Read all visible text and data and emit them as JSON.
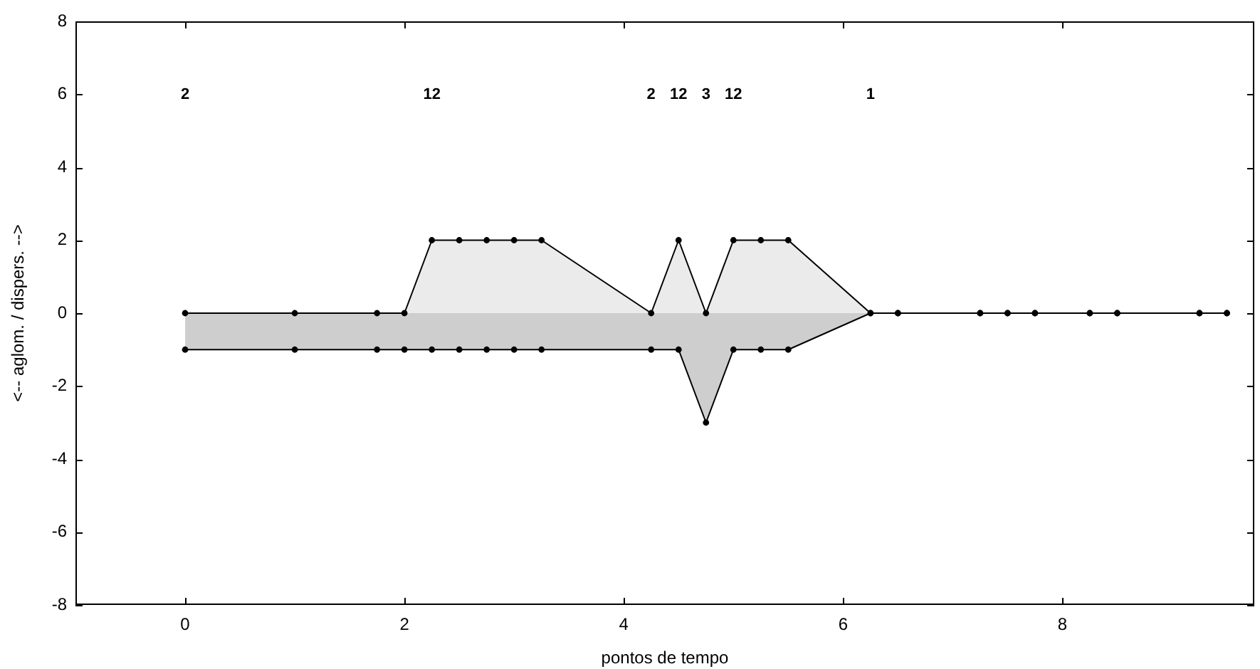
{
  "chart_data": {
    "type": "area",
    "xlabel": "pontos de tempo",
    "ylabel": "<-- aglom. / dispers. -->",
    "x": [
      0,
      1,
      1.75,
      2,
      2.25,
      2.5,
      2.75,
      3,
      3.25,
      4.25,
      4.5,
      4.75,
      5,
      5.25,
      5.5,
      6.25,
      6.5,
      7.25,
      7.5,
      7.75,
      8.25,
      8.5,
      9.25,
      9.5
    ],
    "series": [
      {
        "color": "#ebebeb",
        "values": [
          0,
          0,
          0,
          0,
          2,
          2,
          2,
          2,
          2,
          0,
          2,
          0,
          2,
          2,
          2,
          0,
          0,
          0,
          0,
          0,
          0,
          0,
          0,
          0
        ]
      },
      {
        "color": "#cecece",
        "values": [
          -1,
          -1,
          -1,
          -1,
          -1,
          -1,
          -1,
          -1,
          -1,
          -1,
          -1,
          -3,
          -1,
          -1,
          -1,
          0,
          0,
          0,
          0,
          0,
          0,
          0,
          0,
          0
        ]
      }
    ],
    "xlim": [
      -1,
      9.75
    ],
    "ylim": [
      -8,
      8
    ],
    "xticks": [
      0,
      2,
      4,
      6,
      8
    ],
    "yticks": [
      -8,
      -6,
      -4,
      -2,
      0,
      2,
      4,
      6,
      8
    ],
    "marker": "circle",
    "line_style": "solid",
    "annotations": [
      "2",
      "12",
      "2",
      "12",
      "3",
      "12",
      "1"
    ]
  }
}
